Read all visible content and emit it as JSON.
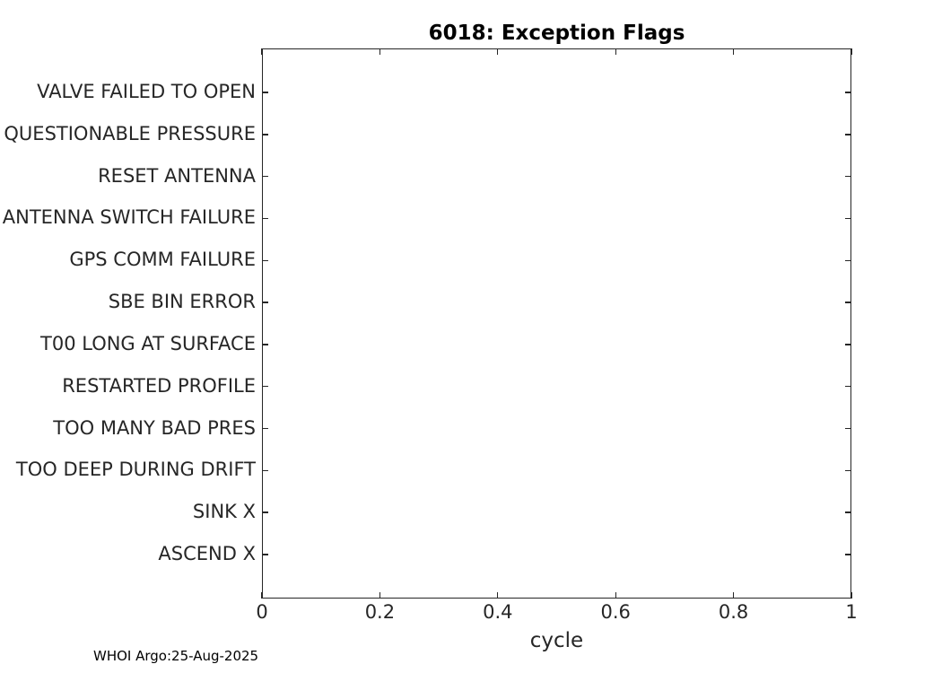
{
  "figure": {
    "footer": "WHOI Argo:25-Aug-2025"
  },
  "chart_data": {
    "type": "scatter",
    "title": "6018: Exception Flags",
    "xlabel": "cycle",
    "ylabel": "",
    "categories_order": "top-to-bottom",
    "categories": [
      "VALVE FAILED TO OPEN",
      "QUESTIONABLE PRESSURE",
      "RESET ANTENNA",
      "ANTENNA SWITCH FAILURE",
      "GPS COMM FAILURE",
      "SBE BIN ERROR",
      "T00 LONG AT SURFACE",
      "RESTARTED PROFILE",
      "TOO MANY BAD PRES",
      "TOO DEEP DURING DRIFT",
      "SINK X",
      "ASCEND X"
    ],
    "x_tick_labels": [
      "0",
      "0.2",
      "0.4",
      "0.6",
      "0.8",
      "1"
    ],
    "x_tick_values": [
      0,
      0.2,
      0.4,
      0.6,
      0.8,
      1
    ],
    "xlim": [
      0,
      1
    ],
    "points": [],
    "grid": false,
    "box": true,
    "tick_direction": "in",
    "legend": null,
    "colors": {
      "axis": "#262626",
      "tick_text": "#262626",
      "title_text": "#000000",
      "background": "#ffffff"
    }
  }
}
